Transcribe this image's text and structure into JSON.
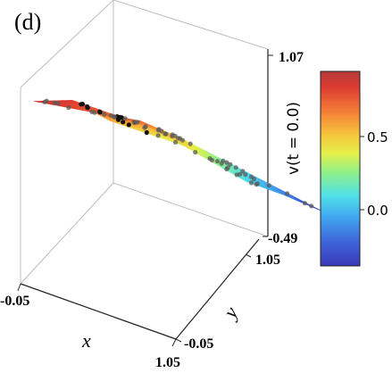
{
  "chart_data": {
    "type": "surface3d",
    "panel_label": "(d)",
    "xlabel": "x",
    "ylabel": "y",
    "zlabel": "v(t = 0.0)",
    "x_range": [
      -0.05,
      1.05
    ],
    "y_range": [
      -0.05,
      1.05
    ],
    "z_range": [
      -0.49,
      1.07
    ],
    "x_ticks": [
      "-0.05",
      "1.05"
    ],
    "y_ticks": [
      "-0.05",
      "1.05"
    ],
    "z_ticks": [
      "1.07",
      "-0.49"
    ],
    "colorbar": {
      "colormap": "jet",
      "range": [
        -0.3,
        1.0
      ],
      "ticks": [
        {
          "value": 0.5,
          "label": "0.5"
        },
        {
          "value": 0.0,
          "label": "0.0"
        }
      ]
    },
    "surface_samples": [
      {
        "x": 0.0,
        "y": 0.0,
        "z": 0.93
      },
      {
        "x": 0.0,
        "y": 0.5,
        "z": 0.78
      },
      {
        "x": 0.0,
        "y": 1.0,
        "z": 0.15
      },
      {
        "x": 0.5,
        "y": 0.0,
        "z": 0.9
      },
      {
        "x": 0.5,
        "y": 0.5,
        "z": 0.55
      },
      {
        "x": 0.5,
        "y": 1.0,
        "z": -0.05
      },
      {
        "x": 1.0,
        "y": 0.0,
        "z": 0.62
      },
      {
        "x": 1.0,
        "y": 0.5,
        "z": 0.28
      },
      {
        "x": 1.0,
        "y": 1.0,
        "z": -0.28
      }
    ]
  }
}
